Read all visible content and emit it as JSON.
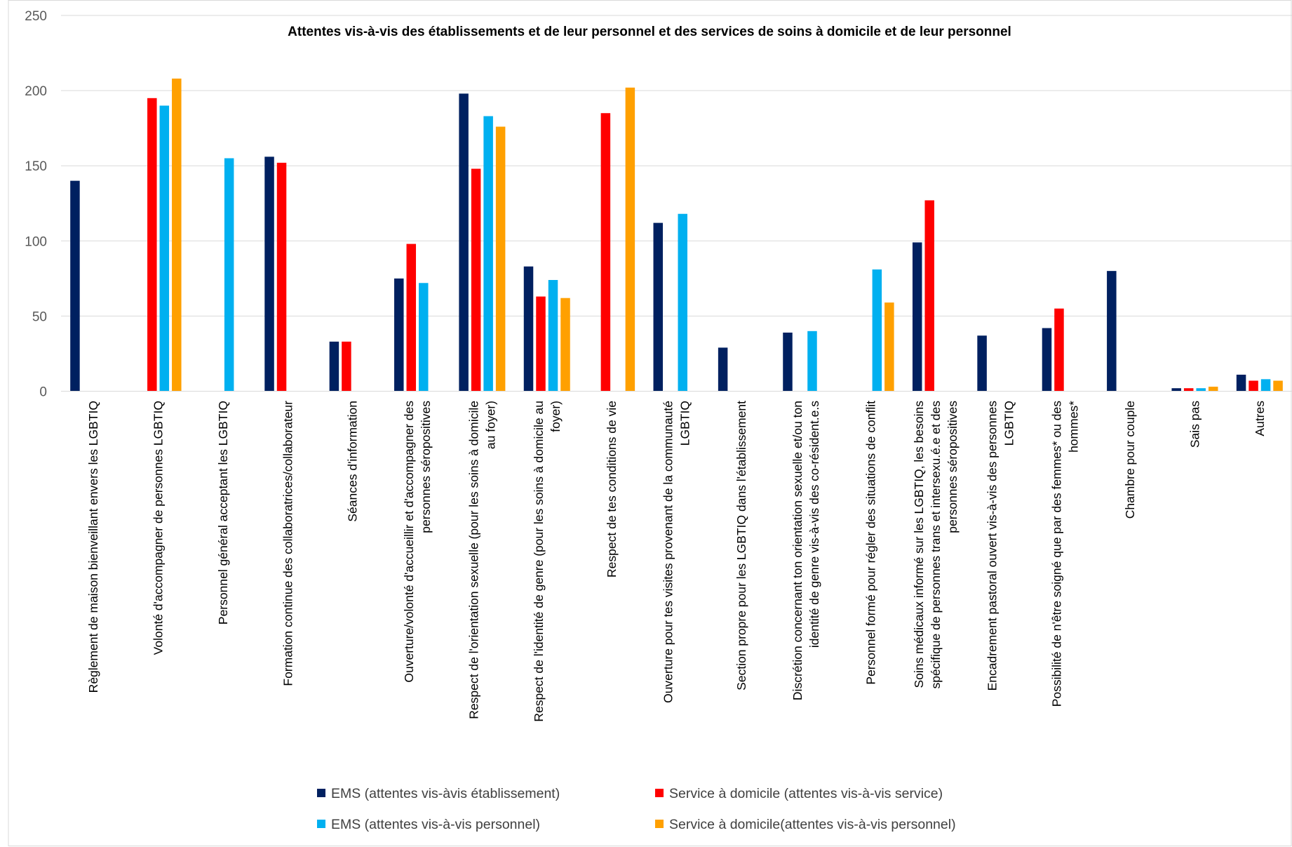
{
  "chart_data": {
    "type": "bar",
    "title": "Attentes vis-à-vis des établissements et de leur personnel et des services de soins à domicile et de leur personnel",
    "xlabel": "",
    "ylabel": "",
    "ylim": [
      0,
      250
    ],
    "yticks": [
      0,
      50,
      100,
      150,
      200,
      250
    ],
    "grid": true,
    "legend_position": "bottom",
    "categories": [
      [
        "Règlement de maison bienveillant envers les LGBTIQ"
      ],
      [
        "Volonté d'accompagner de personnes LGBTIQ"
      ],
      [
        "Personnel général acceptant les LGBTIQ"
      ],
      [
        "Formation continue des collaboratrices/collaborateur"
      ],
      [
        "Séances d'information"
      ],
      [
        "Ouverture/volonté d'accueillir et d'accompagner des",
        "personnes séropositives"
      ],
      [
        "Respect de l'orientation sexuelle (pour les soins à domicile",
        "au foyer)"
      ],
      [
        "Respect de l'identité de genre (pour les soins à domicile au",
        "foyer)"
      ],
      [
        "Respect de tes conditions de vie"
      ],
      [
        "Ouverture pour tes visites provenant de la communauté",
        "LGBTIQ"
      ],
      [
        "Section propre pour les LGBTIQ dans l'établissement"
      ],
      [
        "Discrétion concernant ton orientation sexuelle et/ou ton",
        "identité de genre vis-à-vis des co-résident.e.s"
      ],
      [
        "Personnel formé pour régler des situations de conflit"
      ],
      [
        "Soins médicaux informé sur les LGBTIQ, les besoins",
        "spécifique de personnes trans et intersexu.é.e et des",
        "personnes séropositives"
      ],
      [
        "Encadrement pastoral ouvert vis-à-vis des personnes",
        "LGBTIQ"
      ],
      [
        "Possibilité de n'être soigné que par des femmes* ou des",
        "hommes*"
      ],
      [
        "Chambre pour couple"
      ],
      [
        "Sais pas"
      ],
      [
        "Autres"
      ]
    ],
    "series": [
      {
        "name": "EMS (attentes vis-àvis établissement)",
        "color": "#002060",
        "values": [
          140,
          0,
          0,
          156,
          33,
          75,
          198,
          83,
          0,
          112,
          29,
          39,
          0,
          99,
          37,
          42,
          80,
          2,
          11
        ]
      },
      {
        "name": "Service à domicile (attentes vis-à-vis service)",
        "color": "#FF0000",
        "values": [
          0,
          195,
          0,
          152,
          33,
          98,
          148,
          63,
          185,
          0,
          0,
          0,
          0,
          127,
          0,
          55,
          0,
          2,
          7
        ]
      },
      {
        "name": "EMS (attentes vis-à-vis personnel)",
        "color": "#00B0F0",
        "values": [
          0,
          190,
          155,
          0,
          0,
          72,
          183,
          74,
          0,
          118,
          0,
          40,
          81,
          0,
          0,
          0,
          0,
          2,
          8
        ]
      },
      {
        "name": "Service à domicile(attentes vis-à-vis personnel)",
        "color": "#FFA000",
        "values": [
          0,
          208,
          0,
          0,
          0,
          0,
          176,
          62,
          202,
          0,
          0,
          0,
          59,
          0,
          0,
          0,
          0,
          3,
          7
        ]
      }
    ]
  }
}
